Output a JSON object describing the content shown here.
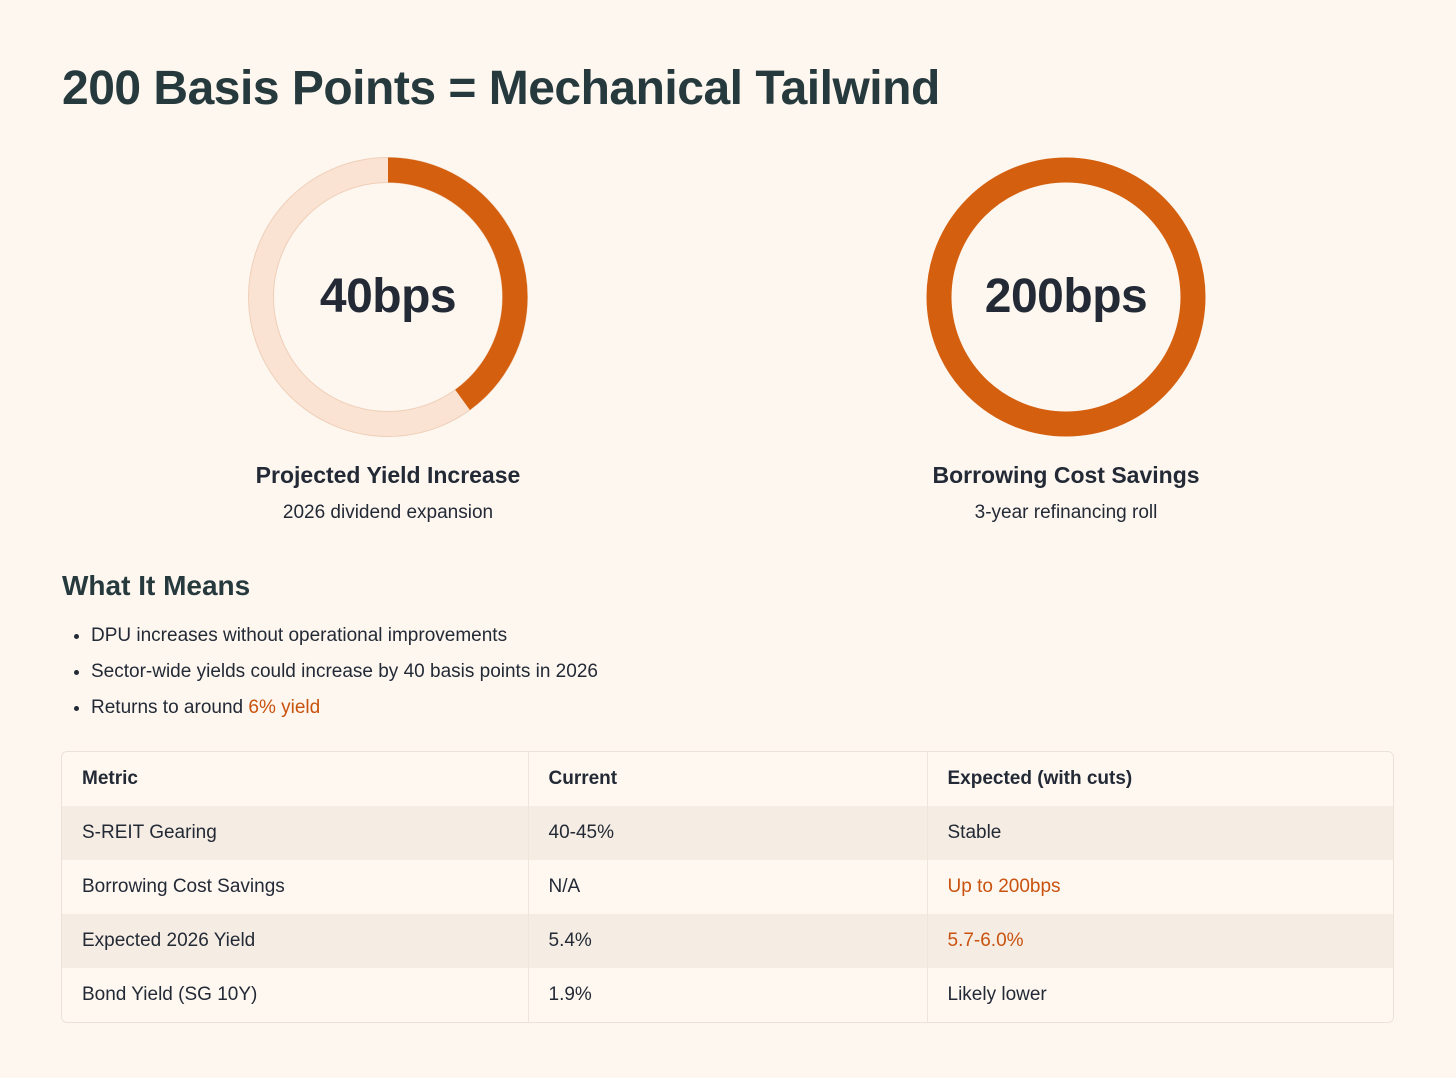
{
  "title": "200 Basis Points = Mechanical Tailwind",
  "colors": {
    "accent": "#d4600f",
    "ring_track": "#fbe3d3",
    "background": "#fdf7f0",
    "heading": "#263a3e"
  },
  "gauges": [
    {
      "value_text": "40bps",
      "label": "Projected Yield Increase",
      "subtitle": "2026 dividend expansion",
      "fill_fraction": 0.4
    },
    {
      "value_text": "200bps",
      "label": "Borrowing Cost Savings",
      "subtitle": "3-year refinancing roll",
      "fill_fraction": 1.0
    }
  ],
  "what_it_means": {
    "heading": "What It Means",
    "bullets": [
      {
        "text": "DPU increases without operational improvements",
        "highlight": ""
      },
      {
        "text": "Sector-wide yields could increase by 40 basis points in 2026",
        "highlight": ""
      },
      {
        "text": "Returns to around ",
        "highlight": "6% yield"
      }
    ]
  },
  "table": {
    "headers": [
      "Metric",
      "Current",
      "Expected (with cuts)"
    ],
    "rows": [
      {
        "metric": "S-REIT Gearing",
        "current": "40-45%",
        "expected": "Stable",
        "expected_highlight": false
      },
      {
        "metric": "Borrowing Cost Savings",
        "current": "N/A",
        "expected": "Up to 200bps",
        "expected_highlight": true
      },
      {
        "metric": "Expected 2026 Yield",
        "current": "5.4%",
        "expected": "5.7-6.0%",
        "expected_highlight": true
      },
      {
        "metric": "Bond Yield (SG 10Y)",
        "current": "1.9%",
        "expected": "Likely lower",
        "expected_highlight": false
      }
    ]
  }
}
